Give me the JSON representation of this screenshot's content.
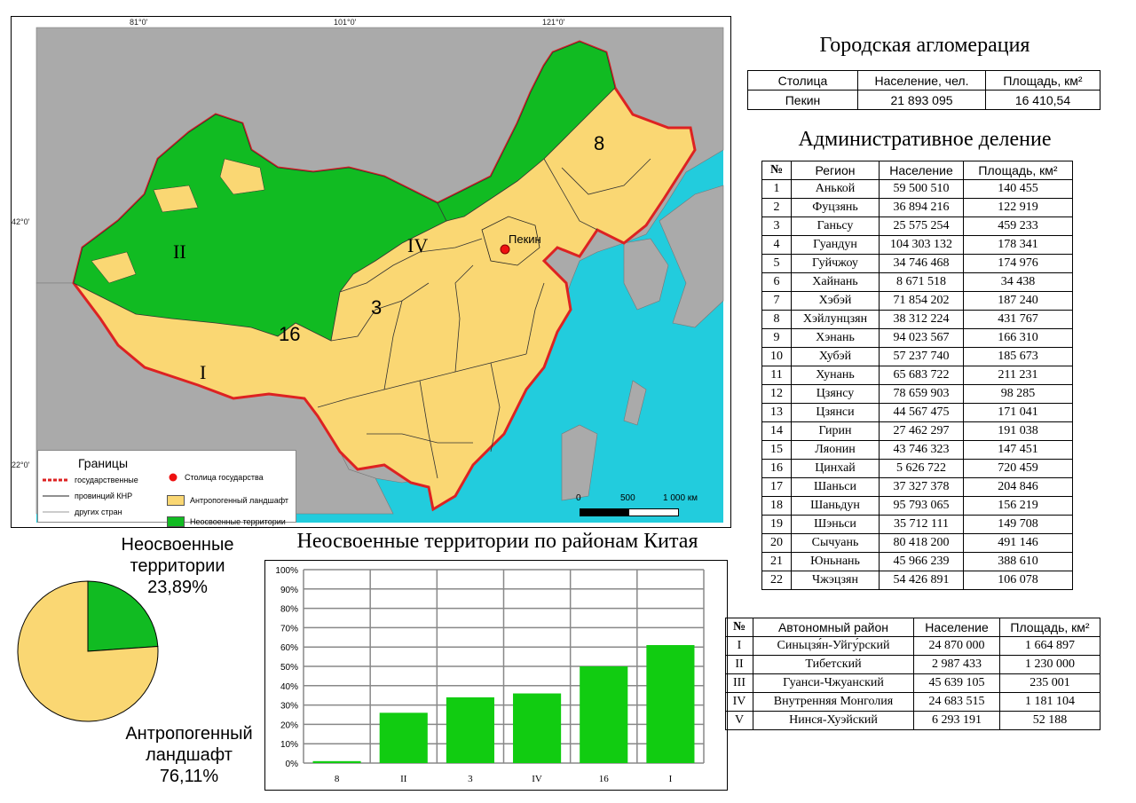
{
  "map": {
    "coords": {
      "lon1": "81°0'",
      "lon2": "101°0'",
      "lon3": "121°0'",
      "lat1": "42°0'",
      "lat2": "22°0'"
    },
    "labels": {
      "r8": "8",
      "rII": "II",
      "rIV": "IV",
      "r3": "3",
      "r16": "16",
      "rI": "I",
      "capital": "Пекин"
    },
    "legend": {
      "title": "Границы",
      "b1": "государственные",
      "b2": "провинций КНР",
      "b3": "других стран",
      "capital": "Столица государства",
      "anthro": "Антропогенный ландшафт",
      "unused": "Неосвоенные территории"
    },
    "scale": {
      "s0": "0",
      "s1": "500",
      "s2": "1 000 км"
    },
    "colors": {
      "sea": "#22ccdd",
      "land_other": "#aaaaaa",
      "anthro": "#fad773",
      "unused": "#11bb22",
      "border_state": "#dd2222",
      "capital": "#ee1111"
    }
  },
  "agglomeration": {
    "title": "Городская агломерация",
    "headers": [
      "Столица",
      "Население, чел.",
      "Площадь, км²"
    ],
    "row": [
      "Пекин",
      "21 893 095",
      "16 410,54"
    ]
  },
  "admin": {
    "title": "Административное деление",
    "headers": [
      "№",
      "Регион",
      "Население",
      "Площадь, км²"
    ],
    "rows": [
      [
        "1",
        "Анькой",
        "59 500 510",
        "140 455"
      ],
      [
        "2",
        "Фуцзянь",
        "36 894 216",
        "122 919"
      ],
      [
        "3",
        "Ганьсу",
        "25 575 254",
        "459 233"
      ],
      [
        "4",
        "Гуандун",
        "104 303 132",
        "178 341"
      ],
      [
        "5",
        "Гуйчжоу",
        "34 746 468",
        "174 976"
      ],
      [
        "6",
        "Хайнань",
        "8 671 518",
        "34 438"
      ],
      [
        "7",
        "Хэбэй",
        "71 854 202",
        "187 240"
      ],
      [
        "8",
        "Хэйлунцзян",
        "38 312 224",
        "431 767"
      ],
      [
        "9",
        "Хэнань",
        "94 023 567",
        "166 310"
      ],
      [
        "10",
        "Хубэй",
        "57 237 740",
        "185 673"
      ],
      [
        "11",
        "Хунань",
        "65 683 722",
        "211 231"
      ],
      [
        "12",
        "Цзянсу",
        "78 659 903",
        "98 285"
      ],
      [
        "13",
        "Цзянси",
        "44 567 475",
        "171 041"
      ],
      [
        "14",
        "Гирин",
        "27 462 297",
        "191 038"
      ],
      [
        "15",
        "Ляонин",
        "43 746 323",
        "147 451"
      ],
      [
        "16",
        "Цинхай",
        "5 626 722",
        "720 459"
      ],
      [
        "17",
        "Шаньси",
        "37 327 378",
        "204 846"
      ],
      [
        "18",
        "Шаньдун",
        "95 793 065",
        "156 219"
      ],
      [
        "19",
        "Шэньси",
        "35 712 111",
        "149 708"
      ],
      [
        "20",
        "Сычуань",
        "80 418 200",
        "491 146"
      ],
      [
        "21",
        "Юньнань",
        "45 966 239",
        "388 610"
      ],
      [
        "22",
        "Чжэцзян",
        "54 426 891",
        "106 078"
      ]
    ]
  },
  "autonomous": {
    "headers": [
      "№",
      "Автономный район",
      "Население",
      "Площадь, км²"
    ],
    "rows": [
      [
        "I",
        "Синьцзя́н-Уйгу́рский",
        "24 870 000",
        "1 664 897"
      ],
      [
        "II",
        "Тибетский",
        "2 987 433",
        "1 230 000"
      ],
      [
        "III",
        "Гуанси-Чжуанский",
        "45 639 105",
        "235 001"
      ],
      [
        "IV",
        "Внутренняя Монголия",
        "24 683 515",
        "1 181 104"
      ],
      [
        "V",
        "Нинся-Хуэйский",
        "6 293 191",
        "52 188"
      ]
    ]
  },
  "pie": {
    "label_unused_1": "Неосвоенные",
    "label_unused_2": "территории",
    "label_unused_3": "23,89%",
    "label_anthro_1": "Антропогенный",
    "label_anthro_2": "ландшафт",
    "label_anthro_3": "76,11%"
  },
  "chart_data": [
    {
      "type": "pie",
      "categories": [
        "Неосвоенные территории",
        "Антропогенный ландшафт"
      ],
      "values": [
        23.89,
        76.11
      ],
      "colors": [
        "#11bb22",
        "#fad773"
      ]
    },
    {
      "type": "bar",
      "title": "Неосвоенные территории по районам Китая",
      "categories": [
        "8",
        "II",
        "3",
        "IV",
        "16",
        "I"
      ],
      "values": [
        1,
        26,
        34,
        36,
        50,
        61
      ],
      "ylim": [
        0,
        100
      ],
      "yticks": [
        "0%",
        "10%",
        "20%",
        "30%",
        "40%",
        "50%",
        "60%",
        "70%",
        "80%",
        "90%",
        "100%"
      ],
      "grid": true,
      "color": "#11cc11"
    }
  ]
}
